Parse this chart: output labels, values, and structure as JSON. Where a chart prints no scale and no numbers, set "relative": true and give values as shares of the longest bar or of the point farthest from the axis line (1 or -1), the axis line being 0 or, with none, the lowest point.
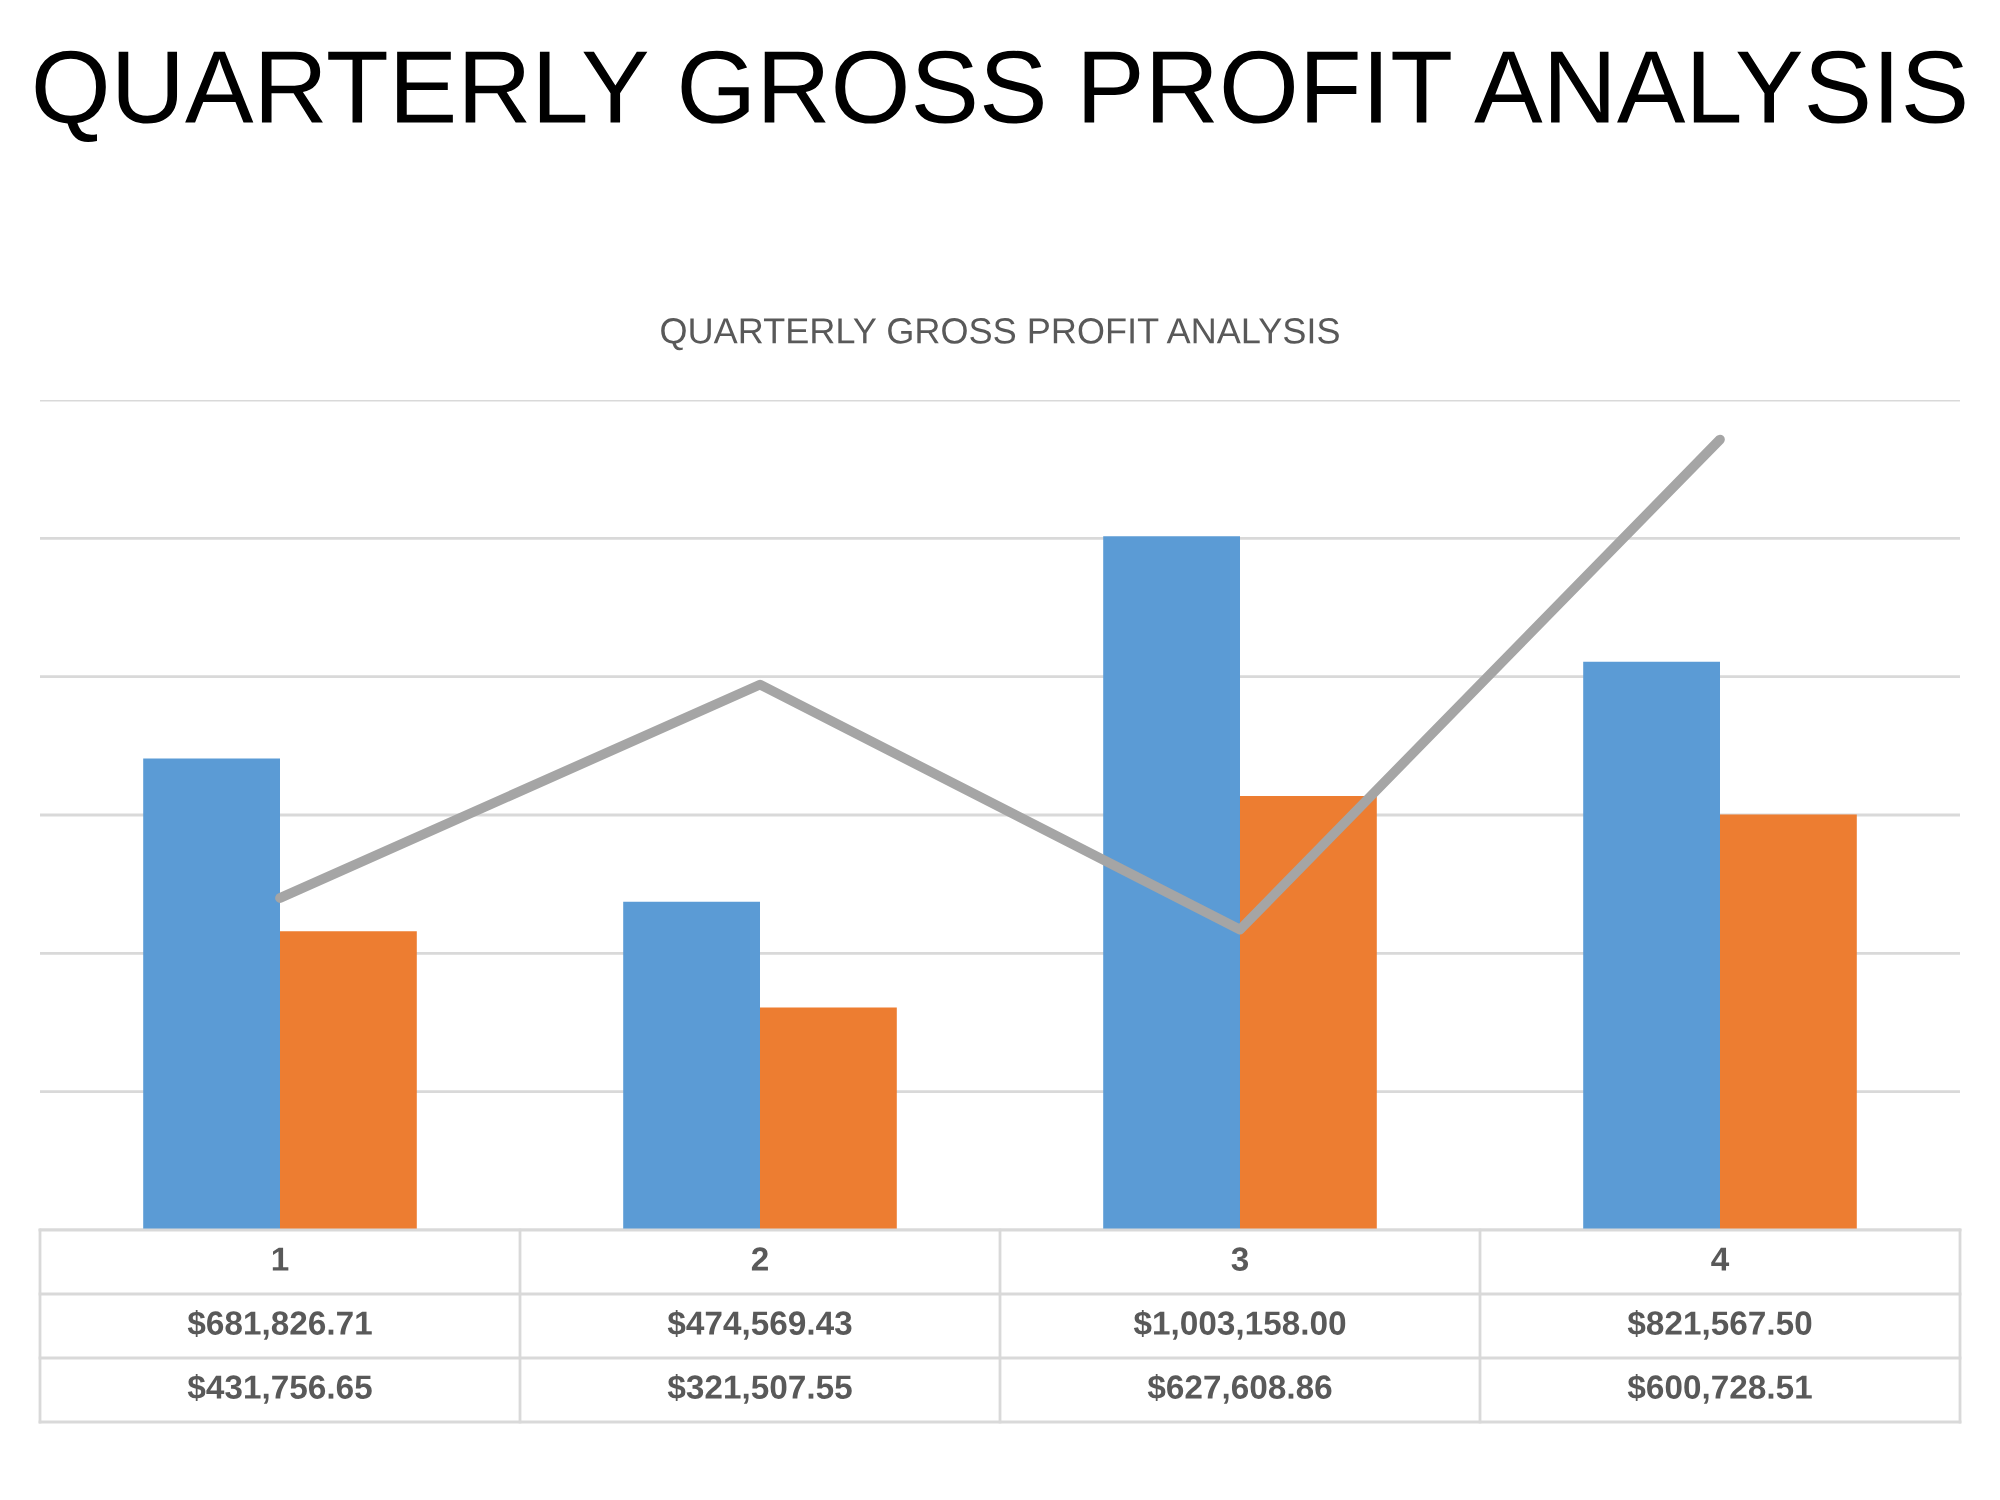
{
  "chart_data": [
    {
      "type": "bar",
      "title": "QUARTERLY GROSS PROFIT ANALYSIS",
      "subtitle": "QUARTERLY GROSS PROFIT ANALYSIS",
      "categories": [
        "1",
        "2",
        "3",
        "4"
      ],
      "series": [
        {
          "color": "#5b9bd5",
          "values": [
            681826.71,
            474569.43,
            1003158.0,
            821567.5
          ],
          "value_labels": [
            "$681,826.71",
            "$474,569.43",
            "$1,003,158.00",
            "$821,567.50"
          ]
        },
        {
          "color": "#ed7d31",
          "values": [
            431756.65,
            321507.55,
            627608.86,
            600728.51
          ],
          "value_labels": [
            "$431,756.65",
            "$321,507.55",
            "$627,608.86",
            "$600,728.51"
          ]
        }
      ],
      "ylim": [
        0,
        1200000
      ],
      "yticks": [
        {
          "value": 0,
          "label": null
        },
        {
          "value": 200000,
          "label": null
        },
        {
          "value": 400000,
          "label": null
        },
        {
          "value": 600000,
          "label": null
        },
        {
          "value": 800000,
          "label": null
        },
        {
          "value": 1000000,
          "label": null
        },
        {
          "value": 1200000,
          "label": null
        }
      ],
      "grid": "y",
      "tick_labels": "x"
    },
    {
      "type": "line",
      "relative": true,
      "categories": [
        "1",
        "2",
        "3",
        "4"
      ],
      "tick_labels": false,
      "series": [
        {
          "color": "#a5a5a5",
          "values": [
            0.42,
            0.69,
            0.38,
            1
          ]
        }
      ]
    }
  ]
}
